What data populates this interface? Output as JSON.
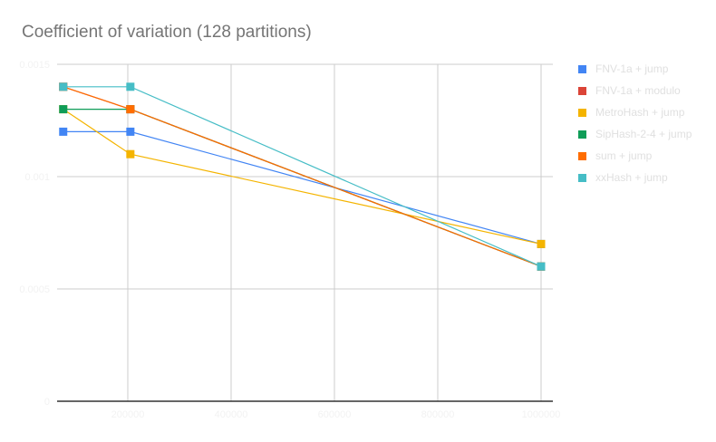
{
  "chart_data": {
    "type": "line",
    "title": "Coefficient of variation (128 partitions)",
    "x": [
      75000,
      205000,
      1000000
    ],
    "xlim": [
      63000,
      1030000
    ],
    "ylim": [
      0,
      0.0015
    ],
    "xticks": [
      "200000",
      "400000",
      "600000",
      "800000",
      "1000000"
    ],
    "yticks": [
      "0",
      "0.0005",
      "0.001",
      "0.0015"
    ],
    "grid": true,
    "legend": "right",
    "series": [
      {
        "name": "FNV-1a + jump",
        "color": "#4285f4",
        "values": [
          0.0012,
          0.0012,
          0.0007
        ]
      },
      {
        "name": "FNV-1a + modulo",
        "color": "#db4437",
        "values": [
          0.0014,
          0.0013,
          0.0006
        ]
      },
      {
        "name": "MetroHash + jump",
        "color": "#f4b400",
        "values": [
          0.0013,
          0.0011,
          0.0007
        ]
      },
      {
        "name": "SipHash-2-4 + jump",
        "color": "#0f9d58",
        "values": [
          0.0013,
          0.0013,
          0.0006
        ]
      },
      {
        "name": "sum + jump",
        "color": "#ff6d00",
        "values": [
          0.0014,
          0.0013,
          0.0006
        ]
      },
      {
        "name": "xxHash + jump",
        "color": "#46bdc6",
        "values": [
          0.0014,
          0.0014,
          0.0006
        ]
      }
    ]
  }
}
